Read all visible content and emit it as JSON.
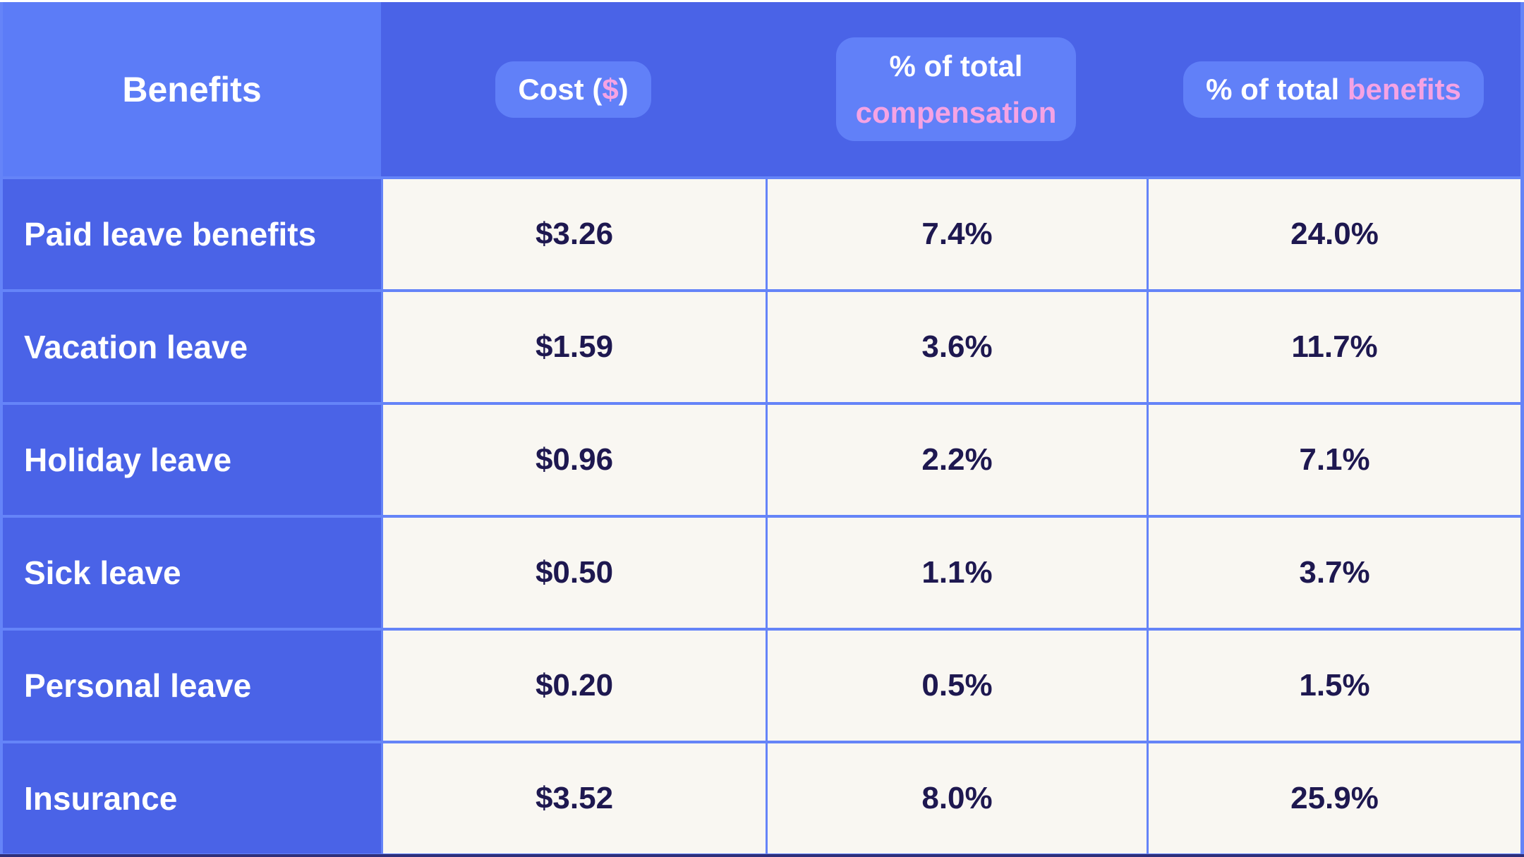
{
  "colors": {
    "header_blue": "#4A63E7",
    "benefits_corner_blue": "#5C7CF7",
    "pill_blue": "#6180F8",
    "grid_line_blue": "#6584F8",
    "data_cell_background": "#F9F7F2",
    "data_text_navy": "#1E1850",
    "accent_pink": "#F5A3E4",
    "bottom_strip_navy": "#2E2F7A",
    "page_background": "#FFFFFF"
  },
  "header": {
    "benefits_label": "Benefits",
    "cost": {
      "pre": "Cost (",
      "accent": "$",
      "post": ")"
    },
    "compensation": {
      "line1": "% of total",
      "accent_line2": "compensation"
    },
    "benefits_pct": {
      "pre": "% of total ",
      "accent": "benefits"
    }
  },
  "rows": [
    {
      "label": "Paid leave benefits",
      "cost": "$3.26",
      "pct_comp": "7.4%",
      "pct_ben": "24.0%"
    },
    {
      "label": "Vacation leave",
      "cost": "$1.59",
      "pct_comp": "3.6%",
      "pct_ben": "11.7%"
    },
    {
      "label": "Holiday leave",
      "cost": "$0.96",
      "pct_comp": "2.2%",
      "pct_ben": "7.1%"
    },
    {
      "label": "Sick leave",
      "cost": "$0.50",
      "pct_comp": "1.1%",
      "pct_ben": "3.7%"
    },
    {
      "label": "Personal leave",
      "cost": "$0.20",
      "pct_comp": "0.5%",
      "pct_ben": "1.5%"
    },
    {
      "label": "Insurance",
      "cost": "$3.52",
      "pct_comp": "8.0%",
      "pct_ben": "25.9%"
    }
  ],
  "chart_data": {
    "type": "table",
    "columns": [
      "Benefits",
      "Cost ($)",
      "% of total compensation",
      "% of total benefits"
    ],
    "rows": [
      [
        "Paid leave benefits",
        "$3.26",
        "7.4%",
        "24.0%"
      ],
      [
        "Vacation leave",
        "$1.59",
        "3.6%",
        "11.7%"
      ],
      [
        "Holiday leave",
        "$0.96",
        "2.2%",
        "7.1%"
      ],
      [
        "Sick leave",
        "$0.50",
        "1.1%",
        "3.7%"
      ],
      [
        "Personal leave",
        "$0.20",
        "0.5%",
        "1.5%"
      ],
      [
        "Insurance",
        "$3.52",
        "8.0%",
        "25.9%"
      ]
    ]
  }
}
